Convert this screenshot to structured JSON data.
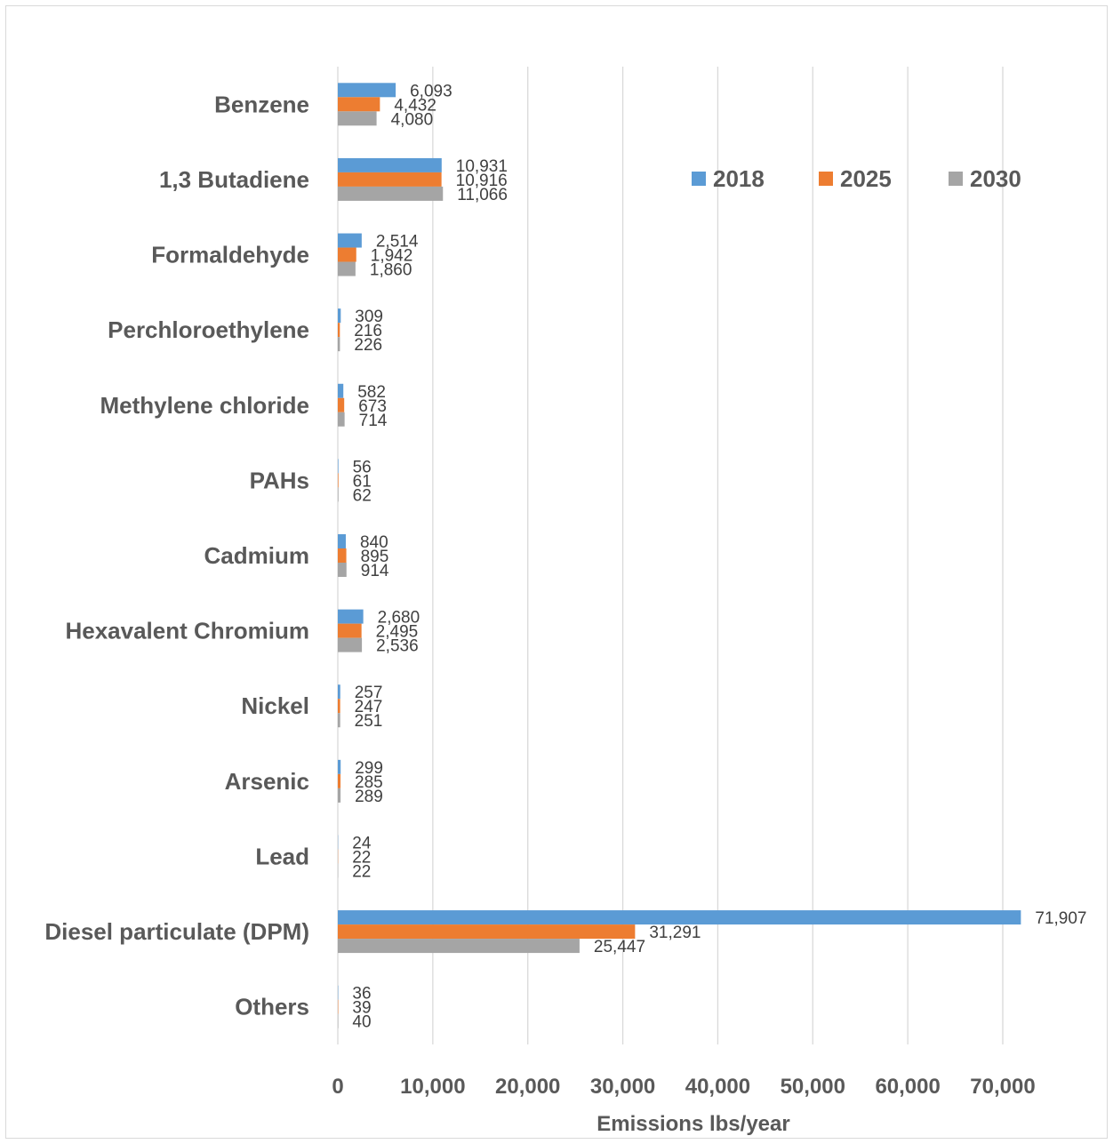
{
  "chart_data": {
    "type": "bar",
    "orientation": "horizontal",
    "title": "",
    "xlabel": "Emissions lbs/year",
    "ylabel": "",
    "xlim": [
      0,
      70000
    ],
    "x_ticks": [
      0,
      10000,
      20000,
      30000,
      40000,
      50000,
      60000,
      70000
    ],
    "x_tick_labels": [
      "0",
      "10,000",
      "20,000",
      "30,000",
      "40,000",
      "50,000",
      "60,000",
      "70,000"
    ],
    "grid": "vertical",
    "legend_position": "top-right",
    "categories": [
      "Benzene",
      "1,3 Butadiene",
      "Formaldehyde",
      "Perchloroethylene",
      "Methylene chloride",
      "PAHs",
      "Cadmium",
      "Hexavalent Chromium",
      "Nickel",
      "Arsenic",
      "Lead",
      "Diesel particulate (DPM)",
      "Others"
    ],
    "series": [
      {
        "name": "2018",
        "color": "#5b9bd5",
        "values": [
          6093,
          10931,
          2514,
          309,
          582,
          56,
          840,
          2680,
          257,
          299,
          24,
          71907,
          36
        ],
        "labels": [
          "6,093",
          "10,931",
          "2,514",
          "309",
          "582",
          "56",
          "840",
          "2,680",
          "257",
          "299",
          "24",
          "71,907",
          "36"
        ]
      },
      {
        "name": "2025",
        "color": "#ed7d31",
        "values": [
          4432,
          10916,
          1942,
          216,
          673,
          61,
          895,
          2495,
          247,
          285,
          22,
          31291,
          39
        ],
        "labels": [
          "4,432",
          "10,916",
          "1,942",
          "216",
          "673",
          "61",
          "895",
          "2,495",
          "247",
          "285",
          "22",
          "31,291",
          "39"
        ]
      },
      {
        "name": "2030",
        "color": "#a5a5a5",
        "values": [
          4080,
          11066,
          1860,
          226,
          714,
          62,
          914,
          2536,
          251,
          289,
          22,
          25447,
          40
        ],
        "labels": [
          "4,080",
          "11,066",
          "1,860",
          "226",
          "714",
          "62",
          "914",
          "2,536",
          "251",
          "289",
          "22",
          "25,447",
          "40"
        ]
      }
    ]
  }
}
